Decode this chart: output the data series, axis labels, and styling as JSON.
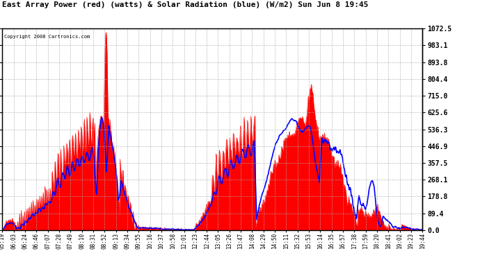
{
  "title": "East Array Power (red) (watts) & Solar Radiation (blue) (W/m2) Sun Jun 8 19:45",
  "copyright": "Copyright 2008 Cartronics.com",
  "background_color": "#ffffff",
  "plot_bg_color": "#ffffff",
  "grid_color": "#aaaaaa",
  "red_color": "#ff0000",
  "blue_color": "#0000ff",
  "yticks": [
    0.0,
    89.4,
    178.8,
    268.1,
    357.5,
    446.9,
    536.3,
    625.6,
    715.0,
    804.4,
    893.8,
    983.1,
    1072.5
  ],
  "ymax": 1072.5,
  "xtick_labels": [
    "05:19",
    "06:03",
    "06:24",
    "06:46",
    "07:07",
    "07:28",
    "07:49",
    "08:10",
    "08:31",
    "08:52",
    "09:13",
    "09:34",
    "09:55",
    "10:16",
    "10:37",
    "10:58",
    "12:01",
    "12:23",
    "12:44",
    "13:05",
    "13:26",
    "13:47",
    "14:08",
    "14:29",
    "14:50",
    "15:11",
    "15:32",
    "15:53",
    "16:14",
    "16:35",
    "16:57",
    "17:38",
    "17:59",
    "18:20",
    "18:41",
    "19:02",
    "19:23",
    "19:44"
  ]
}
